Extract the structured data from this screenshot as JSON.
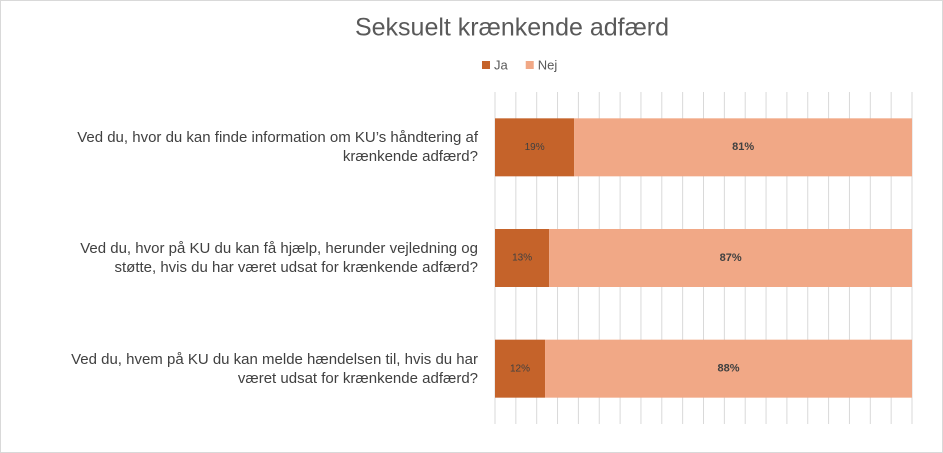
{
  "chart_data": {
    "type": "stacked-bar-horizontal",
    "title": "Seksuelt krænkende adfærd",
    "categories": [
      "Ved du, hvor du kan finde information om KU’s håndtering af krænkende adfærd?",
      "Ved du, hvor på KU du kan få hjælp, herunder vejledning og støtte, hvis du har været udsat for krænkende adfærd?",
      "Ved du, hvem på KU du kan melde hændelsen til, hvis du har været udsat for krænkende adfærd?"
    ],
    "series": [
      {
        "name": "Ja",
        "color": "#c5632a",
        "values": [
          19,
          13,
          12
        ],
        "value_labels": [
          "19%",
          "13%",
          "12%"
        ]
      },
      {
        "name": "Nej",
        "color": "#f1a886",
        "values": [
          81,
          87,
          88
        ],
        "value_labels": [
          "81%",
          "87%",
          "88%"
        ]
      }
    ],
    "xlim": [
      0,
      100
    ],
    "xticks": [
      0,
      5,
      10,
      15,
      20,
      25,
      30,
      35,
      40,
      45,
      50,
      55,
      60,
      65,
      70,
      75,
      80,
      85,
      90,
      95,
      100
    ],
    "grid": true,
    "legend": "top"
  }
}
